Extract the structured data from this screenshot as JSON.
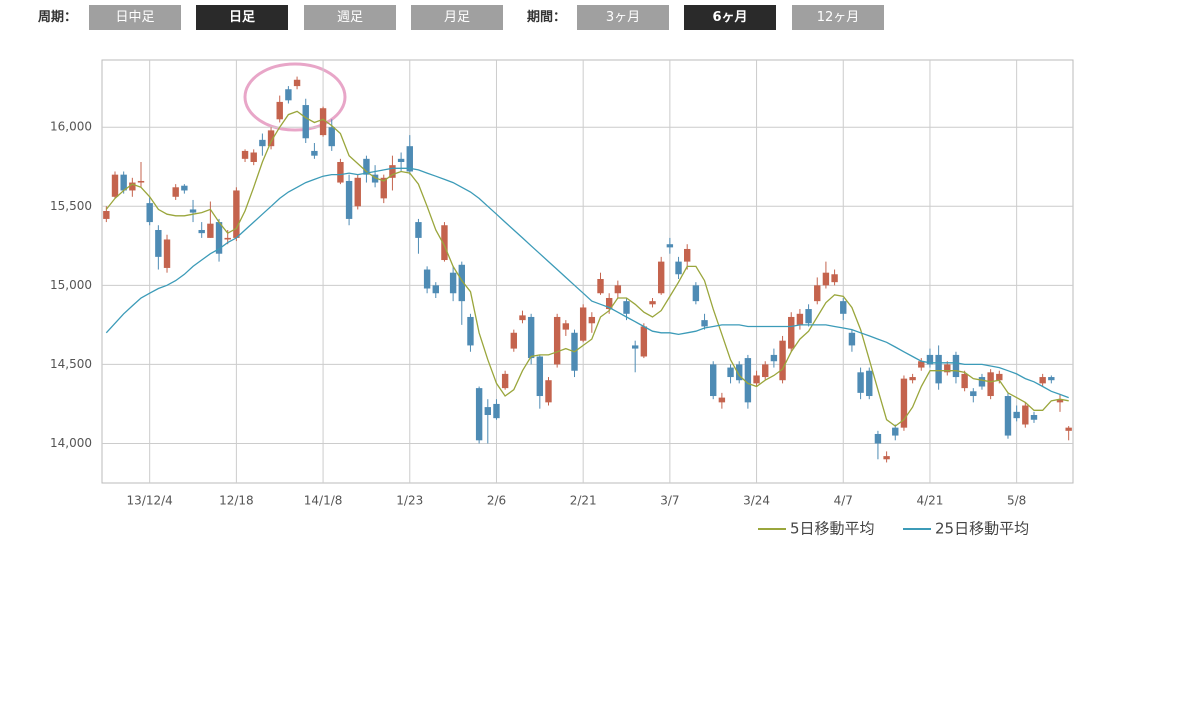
{
  "controls": {
    "period_label": "周期：",
    "period_buttons": [
      {
        "label": "日中足",
        "active": false
      },
      {
        "label": "日足",
        "active": true
      },
      {
        "label": "週足",
        "active": false
      },
      {
        "label": "月足",
        "active": false
      }
    ],
    "range_label": "期間：",
    "range_buttons": [
      {
        "label": "3ヶ月",
        "active": false
      },
      {
        "label": "6ヶ月",
        "active": true
      },
      {
        "label": "12ヶ月",
        "active": false
      }
    ]
  },
  "chart_data": {
    "type": "candlestick",
    "categories": [
      null,
      null,
      null,
      null,
      null,
      "13/12/4",
      null,
      null,
      null,
      null,
      null,
      null,
      null,
      null,
      null,
      "12/18",
      null,
      null,
      null,
      null,
      null,
      null,
      null,
      null,
      null,
      "14/1/8",
      null,
      null,
      null,
      null,
      null,
      null,
      null,
      null,
      null,
      "1/23",
      null,
      null,
      null,
      null,
      null,
      null,
      null,
      null,
      null,
      "2/6",
      null,
      null,
      null,
      null,
      null,
      null,
      null,
      null,
      null,
      "2/21",
      null,
      null,
      null,
      null,
      null,
      null,
      null,
      null,
      null,
      "3/7",
      null,
      null,
      null,
      null,
      null,
      null,
      null,
      null,
      null,
      "3/24",
      null,
      null,
      null,
      null,
      null,
      null,
      null,
      null,
      null,
      "4/7",
      null,
      null,
      null,
      null,
      null,
      null,
      null,
      null,
      null,
      "4/21",
      null,
      null,
      null,
      null,
      null,
      null,
      null,
      null,
      null,
      "5/8",
      null,
      null,
      null,
      null,
      null,
      null
    ],
    "open": [
      15420,
      15560,
      15700,
      15600,
      15650,
      15520,
      15350,
      15110,
      15560,
      15630,
      15480,
      15350,
      15300,
      15400,
      15290,
      15300,
      15800,
      15780,
      15920,
      15880,
      16050,
      16240,
      16260,
      16140,
      15850,
      15950,
      16000,
      15650,
      15660,
      15500,
      15800,
      15700,
      15550,
      15680,
      15800,
      15880,
      15400,
      15100,
      15000,
      15160,
      15080,
      15130,
      14800,
      14350,
      14230,
      14250,
      14350,
      14600,
      14780,
      14800,
      14550,
      14260,
      14500,
      14720,
      14700,
      14650,
      14760,
      14950,
      14850,
      14950,
      14900,
      14620,
      14550,
      14880,
      14950,
      15260,
      15150,
      15150,
      15000,
      14780,
      14500,
      14260,
      14480,
      14500,
      14540,
      14380,
      14420,
      14560,
      14400,
      14600,
      14750,
      14850,
      14900,
      15000,
      15020,
      14900,
      14700,
      14450,
      14460,
      14060,
      13900,
      14100,
      14100,
      14400,
      14480,
      14560,
      14560,
      14450,
      14560,
      14350,
      14330,
      14420,
      14300,
      14400,
      14300,
      14200,
      14120,
      14180,
      14380,
      14420,
      14260,
      14080
    ],
    "high": [
      15500,
      15720,
      15720,
      15680,
      15780,
      15560,
      15380,
      15320,
      15640,
      15640,
      15540,
      15400,
      15530,
      15420,
      15350,
      15620,
      15860,
      15860,
      15960,
      16000,
      16200,
      16260,
      16320,
      16180,
      15900,
      16130,
      16050,
      15800,
      15700,
      15700,
      15820,
      15760,
      15700,
      15820,
      15840,
      15950,
      15420,
      15120,
      15020,
      15400,
      15120,
      15150,
      14820,
      14360,
      14280,
      14280,
      14460,
      14720,
      14840,
      14820,
      14560,
      14420,
      14820,
      14780,
      14720,
      14880,
      14830,
      15080,
      14950,
      15030,
      14920,
      14650,
      14760,
      14920,
      15180,
      15300,
      15180,
      15260,
      15020,
      14820,
      14520,
      14320,
      14500,
      14520,
      14560,
      14460,
      14520,
      14600,
      14680,
      14830,
      14850,
      14880,
      15050,
      15150,
      15100,
      14920,
      14720,
      14480,
      14480,
      14080,
      13950,
      14120,
      14430,
      14440,
      14540,
      14600,
      14620,
      14520,
      14580,
      14460,
      14350,
      14440,
      14470,
      14460,
      14320,
      14240,
      14260,
      14200,
      14440,
      14430,
      14310,
      14110
    ],
    "low": [
      15400,
      15550,
      15580,
      15560,
      15620,
      15380,
      15100,
      15080,
      15540,
      15580,
      15400,
      15300,
      15300,
      15150,
      15260,
      15280,
      15780,
      15760,
      15820,
      15860,
      16030,
      16150,
      16240,
      15900,
      15800,
      15940,
      15850,
      15640,
      15380,
      15480,
      15650,
      15620,
      15520,
      15600,
      15720,
      15700,
      15200,
      14950,
      14920,
      15150,
      14900,
      14750,
      14580,
      14000,
      14000,
      14150,
      14340,
      14580,
      14760,
      14500,
      14220,
      14240,
      14480,
      14680,
      14420,
      14640,
      14700,
      14940,
      14820,
      14920,
      14780,
      14450,
      14540,
      14860,
      14940,
      15200,
      15040,
      15100,
      14880,
      14720,
      14280,
      14220,
      14380,
      14380,
      14220,
      14360,
      14400,
      14480,
      14380,
      14580,
      14720,
      14740,
      14880,
      14980,
      15000,
      14780,
      14580,
      14280,
      14280,
      13900,
      13880,
      14020,
      14080,
      14380,
      14460,
      14480,
      14340,
      14430,
      14380,
      14330,
      14260,
      14340,
      14280,
      14380,
      14030,
      14140,
      14100,
      14130,
      14360,
      14380,
      14200,
      14020
    ],
    "close": [
      15470,
      15700,
      15600,
      15650,
      15660,
      15400,
      15180,
      15290,
      15620,
      15600,
      15460,
      15330,
      15390,
      15200,
      15300,
      15600,
      15850,
      15840,
      15880,
      15980,
      16160,
      16170,
      16300,
      15930,
      15820,
      16120,
      15880,
      15780,
      15420,
      15680,
      15700,
      15650,
      15680,
      15760,
      15780,
      15720,
      15300,
      14980,
      14950,
      15380,
      14950,
      14900,
      14620,
      14020,
      14180,
      14160,
      14440,
      14700,
      14810,
      14540,
      14300,
      14400,
      14800,
      14760,
      14460,
      14860,
      14800,
      15040,
      14920,
      15000,
      14820,
      14600,
      14740,
      14900,
      15150,
      15240,
      15070,
      15230,
      14900,
      14740,
      14300,
      14290,
      14420,
      14400,
      14260,
      14430,
      14500,
      14520,
      14650,
      14800,
      14820,
      14760,
      15000,
      15080,
      15070,
      14820,
      14620,
      14320,
      14300,
      14000,
      13920,
      14050,
      14410,
      14420,
      14520,
      14500,
      14380,
      14500,
      14420,
      14440,
      14300,
      14360,
      14450,
      14440,
      14050,
      14160,
      14240,
      14150,
      14420,
      14400,
      14280,
      14100
    ],
    "up_color": "#c4634d",
    "down_color": "#4e8bb4",
    "series": [
      {
        "name": "5日移動平均",
        "color": "#9aa63c",
        "values": [
          15480,
          15550,
          15600,
          15640,
          15620,
          15560,
          15480,
          15450,
          15440,
          15440,
          15450,
          15460,
          15480,
          15400,
          15330,
          15360,
          15470,
          15620,
          15780,
          15910,
          16000,
          16080,
          16100,
          16060,
          16030,
          16050,
          16010,
          15960,
          15820,
          15770,
          15720,
          15680,
          15660,
          15700,
          15720,
          15710,
          15640,
          15500,
          15350,
          15250,
          15120,
          15030,
          14960,
          14700,
          14530,
          14380,
          14300,
          14340,
          14460,
          14550,
          14560,
          14560,
          14580,
          14600,
          14580,
          14620,
          14660,
          14800,
          14840,
          14920,
          14920,
          14880,
          14830,
          14800,
          14840,
          14930,
          15020,
          15120,
          15120,
          15030,
          14850,
          14690,
          14530,
          14430,
          14380,
          14360,
          14400,
          14430,
          14470,
          14580,
          14660,
          14710,
          14800,
          14890,
          14940,
          14930,
          14860,
          14720,
          14530,
          14340,
          14150,
          14110,
          14150,
          14230,
          14360,
          14460,
          14460,
          14460,
          14460,
          14450,
          14410,
          14400,
          14390,
          14400,
          14320,
          14290,
          14260,
          14210,
          14210,
          14270,
          14280,
          14270
        ]
      },
      {
        "name": "25日移動平均",
        "color": "#3c9bb8",
        "values": [
          14700,
          14760,
          14820,
          14870,
          14920,
          14950,
          14980,
          15000,
          15030,
          15070,
          15120,
          15160,
          15200,
          15230,
          15270,
          15300,
          15350,
          15400,
          15450,
          15500,
          15550,
          15590,
          15620,
          15650,
          15670,
          15690,
          15700,
          15700,
          15710,
          15700,
          15710,
          15720,
          15730,
          15740,
          15740,
          15740,
          15730,
          15710,
          15690,
          15670,
          15650,
          15620,
          15590,
          15550,
          15500,
          15450,
          15400,
          15350,
          15300,
          15250,
          15200,
          15150,
          15100,
          15050,
          15000,
          14950,
          14900,
          14880,
          14860,
          14830,
          14800,
          14770,
          14740,
          14710,
          14700,
          14700,
          14690,
          14700,
          14710,
          14730,
          14740,
          14750,
          14750,
          14750,
          14740,
          14740,
          14740,
          14740,
          14740,
          14740,
          14750,
          14750,
          14750,
          14750,
          14740,
          14730,
          14720,
          14700,
          14680,
          14660,
          14640,
          14610,
          14580,
          14550,
          14520,
          14510,
          14510,
          14510,
          14510,
          14500,
          14500,
          14500,
          14490,
          14480,
          14460,
          14440,
          14410,
          14390,
          14360,
          14330,
          14310,
          14290
        ]
      }
    ],
    "ylim": [
      13750,
      16425
    ],
    "yticks": [
      {
        "value": 14000,
        "label": "14,000"
      },
      {
        "value": 14500,
        "label": "14,500"
      },
      {
        "value": 15000,
        "label": "15,000"
      },
      {
        "value": 15500,
        "label": "15,500"
      },
      {
        "value": 16000,
        "label": "16,000"
      }
    ],
    "grid": true,
    "legend": "bottom-right"
  }
}
